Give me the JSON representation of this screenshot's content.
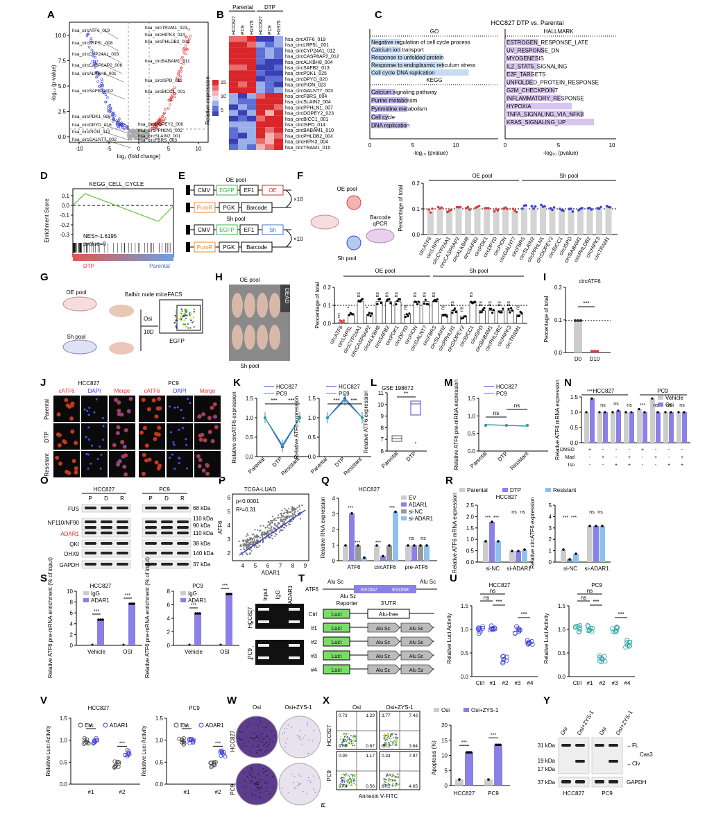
{
  "panel_letters": [
    "A",
    "B",
    "C",
    "D",
    "E",
    "F",
    "G",
    "H",
    "I",
    "J",
    "K",
    "L",
    "M",
    "N",
    "O",
    "P",
    "Q",
    "R",
    "S",
    "T",
    "U",
    "V",
    "W",
    "X",
    "Y"
  ],
  "A": {
    "ylabel": "-log₁₀ (p-value)",
    "xlabel": "log₂ (fold change)",
    "xticks": [
      "-10",
      "-5",
      "0",
      "5",
      "10"
    ],
    "yticks": [
      "0.0",
      "2.5",
      "5.0",
      "7.5",
      "10.0"
    ],
    "left_labels": [
      "hsa_circATF6_019",
      "hsa_circLRP5L_008",
      "hsa_circCYP24A1_003",
      "hsa_circCASP8AP2_006",
      "hsa_circALKBH8_001",
      "hsa_circSAFB2_002",
      "hsa_circPDK1_006",
      "hsa_circDPYD_016",
      "hsa_circPION_012",
      "hsa_circGALNT7_002"
    ],
    "right_labels": [
      "hsa_circTRAM1_023",
      "hsa_circHIPK3_014",
      "hsa_circPHLDB2_002",
      "hsa_circBABAM1_011",
      "hsa_circISPD_012",
      "hsa_circBICC1_001",
      "hsa_circDOPEY2_006",
      "hsa_circPPHLN1_002",
      "hsa_circSLAIN2_001",
      "hsa_circFBRS_003"
    ]
  },
  "B": {
    "group1": "Parental",
    "group2": "DTP",
    "cols": [
      "HCC827",
      "PC9",
      "H1975",
      "HCC827",
      "PC9",
      "H1975"
    ],
    "legend_title": "Relative expression",
    "legend_ticks": [
      "15",
      "10",
      "5"
    ],
    "rows": [
      "hsa_circATF6_019",
      "hsa_circLRP5L_001",
      "hsa_circCYP24A1_012",
      "hsa_circCASP8AP2_012",
      "hsa_circALKBH8_004",
      "hsa_circSAFB2_013",
      "hsa_circPDK1_025",
      "hsa_circDPYD_020",
      "hsa_circPION_023",
      "hsa_circGALNT7_003",
      "hsa_circFBRS_004",
      "hsa_circSLAIN2_004",
      "hsa_circPPHLN1_007",
      "hsa_circDOPEY2_023",
      "hsa_circBICC1_001",
      "hsa_circISPD_014",
      "hsa_circBABAM1_010",
      "hsa_circPHLDB2_004",
      "hsa_circHIPK3_004",
      "hsa_circTRAM1_010"
    ]
  },
  "C": {
    "title": "HCC827 DTP vs. Parental",
    "go_head": "GO",
    "kegg_head": "KEGG",
    "hall_head": "HALLMARK",
    "go": [
      "Negative regulation of cell cycle process",
      "Calcium ion transport",
      "Response to unfolded protein",
      "Response to endoplasmic reticulum stress",
      "Cell cycle DNA replication"
    ],
    "kegg": [
      "Calcium signaling pathway",
      "Purine metabolism",
      "Pyrimidine metabolism",
      "Cell cycle",
      "DNA replication"
    ],
    "hallmark": [
      "ESTROGEN_RESPONSE_LATE",
      "UV_RESPONSE_DN",
      "MYOGENESIS",
      "IL2_STAT5_SIGNALING",
      "E2F_TARGETS",
      "UNFOLDED_PROTEIN_RESPONSE",
      "G2M_CHECKPOINT",
      "INFLAMMATORY_RESPONSE",
      "HYPOXIA",
      "TNFA_SIGNALING_VIA_NFKB",
      "KRAS_SIGNALING_UP"
    ],
    "xlabel": "-log₁₀ (pvalue)",
    "xticks": [
      "0",
      "5",
      "10"
    ]
  },
  "D": {
    "title": "KEGG_CELL_CYCLE",
    "ylabel": "Enrichment Score",
    "yticks": [
      "0.1",
      "0.0",
      "-0.1",
      "-0.2",
      "-0.3"
    ],
    "nes": "NES=-1.6195",
    "pval": "pvalue=0",
    "left": "DTP",
    "right": "Parental"
  },
  "E": {
    "oe_title": "OE pool",
    "sh_title": "Sh pool",
    "cmv": "CMV",
    "egfp": "EGFP",
    "ef1": "EF1",
    "oe": "OE",
    "puror": "PuroR",
    "pgk": "PGK",
    "barcode": "Barcode",
    "sh": "Sh",
    "x10": "×10"
  },
  "F": {
    "oe_pool": "OE pool",
    "sh_pool": "Sh pool",
    "barcode_qpcr": "Barcode\nqPCR",
    "ylabel": "Percentage of total",
    "yticks": [
      "0.0",
      "0.1",
      "0.2"
    ],
    "cats": [
      "circATF6",
      "circLRP5L",
      "circCYP24A1",
      "circCASP8AP2",
      "circALKBH8",
      "circSAFB2",
      "circPDK1",
      "circDPYD",
      "circPION",
      "circGALNT7",
      "circFBRS",
      "circSLAIN2",
      "circPPHLN1",
      "circDOPEY2",
      "circBICC1",
      "circISPD",
      "circBABAM1",
      "circPHLDB2",
      "circHIPK3",
      "circTRAM1"
    ]
  },
  "G": {
    "oe_pool": "OE pool",
    "mice": "Balb/c nude mice",
    "sh_pool": "Sh pool",
    "facs": "FACS",
    "osi": "Osi",
    "tenD": "10D",
    "egfp": "EGFP"
  },
  "H": {
    "oe_pool": "OE pool",
    "sh_pool": "Sh pool",
    "dead": "DEAD",
    "ylabel": "Percentage of total",
    "yticks": [
      "0.0",
      "0.1",
      "0.2"
    ],
    "sig": [
      "***",
      "*",
      "ns",
      "*",
      "ns",
      "ns",
      "ns",
      "ns",
      "ns",
      "ns",
      "ns",
      "ns",
      "ns",
      "ns",
      "ns",
      "ns",
      "ns",
      "ns",
      "ns",
      "ns"
    ]
  },
  "I": {
    "title": "circATF6",
    "ylabel": "Percentage of total",
    "yticks": [
      "0.0",
      "0.1",
      "0.2"
    ],
    "cats": [
      "D0",
      "D10"
    ],
    "sig": "***"
  },
  "J": {
    "cell1": "HCC827",
    "cell2": "PC9",
    "cols": [
      "cATF6",
      "DAPI",
      "Merge",
      "cATF6",
      "DAPI",
      "Merge"
    ],
    "rows": [
      "Parental",
      "DTP",
      "Resistant"
    ]
  },
  "K": {
    "legend": [
      "HCC827",
      "PC9"
    ],
    "ylabel1": "Relative circATF6 expression",
    "ylabel2": "Relative ATF6 expression",
    "xcats": [
      "Parental",
      "DTP",
      "Resistant"
    ],
    "yticks": [
      "0.0",
      "0.5",
      "1.0",
      "1.5"
    ],
    "sig": "***"
  },
  "L": {
    "title": "GSE 198672",
    "ylabel": "Relative ATF6 expression",
    "yticks": [
      "6",
      "7",
      "8",
      "9",
      "10",
      "11"
    ],
    "xcats": [
      "Parental",
      "DTP"
    ],
    "sig": "**"
  },
  "M": {
    "legend": [
      "HCC827",
      "PC9"
    ],
    "ylabel": "Relative ATF6 pre-mRNA expression",
    "xcats": [
      "Parental",
      "DTP",
      "Resistant"
    ],
    "yticks": [
      "0.0",
      "0.5",
      "1.0",
      "1.5"
    ],
    "sig": "ns"
  },
  "N": {
    "cell1": "HCC827",
    "cell2": "PC9",
    "legend": [
      "Vehicle",
      "Osi"
    ],
    "ylabel": "Relative ATF6 mRNA expression",
    "yticks": [
      "0.0",
      "0.5",
      "1.0",
      "1.5"
    ],
    "rows": [
      "DMSO",
      "Mad",
      "Iso"
    ],
    "signs": [
      [
        "+",
        "-",
        "-",
        "-",
        "+",
        "-",
        "-",
        "-"
      ],
      [
        "-",
        "+",
        "-",
        "+",
        "-",
        "+",
        "-",
        "+"
      ],
      [
        "-",
        "-",
        "+",
        "+",
        "-",
        "-",
        "+",
        "+"
      ]
    ],
    "sig": [
      "***",
      "ns",
      "ns",
      "ns",
      "***",
      "ns",
      "ns",
      "ns"
    ]
  },
  "O": {
    "cell1": "HCC827",
    "cell2": "PC9",
    "lanes": [
      "P",
      "D",
      "R",
      "P",
      "D",
      "R"
    ],
    "proteins": [
      "FUS",
      "NF110/NF90",
      "ADAR1",
      "QKI",
      "DHX9",
      "GAPDH"
    ],
    "kda": [
      "68 kDa",
      "110 kDa",
      "90 kDa",
      "110 kDa",
      "38 kDa",
      "140 kDa",
      "37 kDa"
    ]
  },
  "P": {
    "title": "TCGA-LUAD",
    "p": "p<0.0001",
    "r2": "R²=0.31",
    "xlabel": "ADAR1",
    "ylabel": "ATF6",
    "xticks": [
      "4",
      "5",
      "6",
      "7",
      "8",
      "9"
    ],
    "yticks": [
      "2",
      "3",
      "4",
      "5",
      "6"
    ]
  },
  "Q": {
    "title": "HCC827",
    "legend": [
      "EV",
      "ADAR1",
      "si-NC",
      "si-ADAR1"
    ],
    "ylabel": "Relative RNA expression",
    "yticks": [
      "0",
      "1",
      "2",
      "3",
      "4"
    ],
    "cats": [
      "ATF6",
      "circATF6",
      "pre-ATF6"
    ],
    "sig": [
      "***",
      "***",
      "***",
      "***",
      "ns",
      "ns"
    ]
  },
  "R": {
    "legend": [
      "Parental",
      "DTP",
      "Resistant"
    ],
    "title": "HCC827",
    "ylabel1": "Relative ATF6 mRNA expression",
    "ylabel2": "Relative circATF6 expression",
    "yticks1": [
      "0.0",
      "0.5",
      "1.0",
      "1.5",
      "2.0",
      "2.5"
    ],
    "yticks2": [
      "0",
      "1",
      "2",
      "3",
      "4",
      "5"
    ],
    "cats": [
      "si-NC",
      "si-ADAR1"
    ],
    "sig": [
      "***",
      "***",
      "ns",
      "ns"
    ]
  },
  "S": {
    "cell1": "HCC827",
    "cell2": "PC9",
    "legend": [
      "IgG",
      "ADAR1"
    ],
    "ylabel": "Relative ATF6 pre-mRNA enrichment (% of input)",
    "yticks1": [
      "0",
      "2",
      "4",
      "6",
      "8",
      "10"
    ],
    "yticks2": [
      "0",
      "2",
      "4",
      "6",
      "8"
    ],
    "cats": [
      "Vehicle",
      "OSI"
    ],
    "sig": "***",
    "gel_cols": [
      "Input",
      "IgG",
      "ADAR1"
    ],
    "gel_rows": [
      "HCC827",
      "PC9"
    ]
  },
  "T": {
    "atf6": "ATF6",
    "alu_sc": "Alu Sc",
    "alu_sz": "Alu Sz",
    "exon7": "EXON7",
    "exon8": "EXON8",
    "reporter": "Reporter",
    "utr": "3'UTR",
    "luci": "Luci",
    "alu_free": "Alu-free",
    "rows": [
      "Ctrl",
      "#1",
      "#2",
      "#3",
      "#4"
    ]
  },
  "U": {
    "cell1": "HCC827",
    "cell2": "PC9",
    "ylabel": "Relative Luci Activity",
    "yticks": [
      "0.0",
      "0.5",
      "1.0",
      "1.5"
    ],
    "cats": [
      "Ctrl",
      "#1",
      "#2",
      "#3",
      "#4"
    ],
    "sig": [
      "ns",
      "ns",
      "***",
      "***"
    ]
  },
  "V": {
    "cell1": "HCC827",
    "cell2": "PC9",
    "legend": [
      "EV",
      "ADAR1"
    ],
    "ylabel": "Relative Luci Activity",
    "yticks": [
      "0.0",
      "0.5",
      "1.0",
      "1.5"
    ],
    "cats": [
      "#1",
      "#2"
    ],
    "sig": [
      "ns",
      "***"
    ]
  },
  "W": {
    "cols": [
      "Osi",
      "Osi+ZYS-1"
    ],
    "rows": [
      "HCC827",
      "PC9"
    ]
  },
  "X": {
    "cols": [
      "Osi",
      "Osi+ZYS-1"
    ],
    "rows": [
      "HCC827",
      "PC9"
    ],
    "xlabel": "Annexin V-FITC",
    "ylabel": "PI",
    "quad": [
      [
        "0.73",
        "1.29",
        "97.0",
        "0.67"
      ],
      [
        "3.77",
        "7.43",
        "85.2",
        "3.64"
      ],
      [
        "0.90",
        "1.17",
        "97.4",
        "0.56"
      ],
      [
        "0.33",
        "7.97",
        "87.1",
        "4.65"
      ]
    ],
    "legend": [
      "Osi",
      "Osi+ZYS-1"
    ],
    "ylabel2": "Apoptosis (%)",
    "yticks": [
      "0",
      "5",
      "10",
      "15",
      "20"
    ],
    "cats": [
      "HCC827",
      "PC9"
    ],
    "sig": "***"
  },
  "Y": {
    "cols": [
      "Osi",
      "Osi+ZYS-1",
      "Osi",
      "Osi+ZYS-1"
    ],
    "kda": [
      "31 kDa",
      "19 kDa",
      "17 kDa",
      "37 kDa"
    ],
    "fl": "FL",
    "clv": "Clv",
    "cas3": "Cas3",
    "gapdh": "GAPDH",
    "cells": [
      "HCC827",
      "PC9"
    ]
  },
  "colors": {
    "blue": "#3a3fd6",
    "teal": "#2aa2a2",
    "red": "#e0383a",
    "gray": "#bdbdbd",
    "purple": "#8a80e6",
    "lightblue": "#8fc1ee"
  }
}
